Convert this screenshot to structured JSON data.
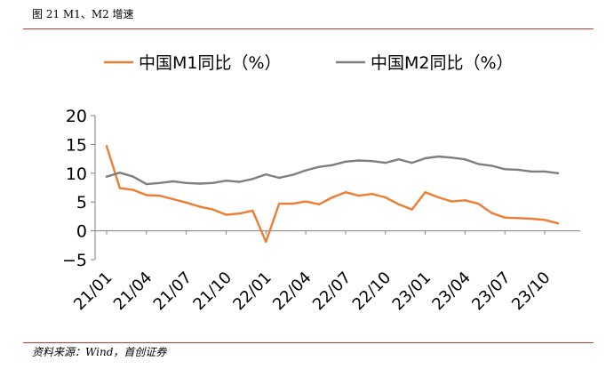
{
  "figure": {
    "title": "图 21 M1、M2 增速",
    "source": "资料来源：Wind，首创证券"
  },
  "colors": {
    "m1": "#ED7D31",
    "m2": "#7F7F7F",
    "axis": "#7F7F7F",
    "rule": "#C0392B"
  },
  "chart_data": {
    "type": "line",
    "title": "图 21 M1、M2 增速",
    "xlabel": "",
    "ylabel": "",
    "ylim": [
      -5,
      20
    ],
    "yticks": [
      "20",
      "15",
      "10",
      "5",
      "0",
      "−5"
    ],
    "ytick_values": [
      20,
      15,
      10,
      5,
      0,
      -5
    ],
    "grid": false,
    "legend": "top",
    "xtick_labels": [
      "21/01",
      "21/04",
      "21/07",
      "21/10",
      "22/01",
      "22/04",
      "22/07",
      "22/10",
      "23/01",
      "23/04",
      "23/07",
      "23/10"
    ],
    "xtick_indices": [
      0,
      3,
      6,
      9,
      12,
      15,
      18,
      21,
      24,
      27,
      30,
      33
    ],
    "x": [
      "21/01",
      "21/02",
      "21/03",
      "21/04",
      "21/05",
      "21/06",
      "21/07",
      "21/08",
      "21/09",
      "21/10",
      "21/11",
      "21/12",
      "22/01",
      "22/02",
      "22/03",
      "22/04",
      "22/05",
      "22/06",
      "22/07",
      "22/08",
      "22/09",
      "22/10",
      "22/11",
      "22/12",
      "23/01",
      "23/02",
      "23/03",
      "23/04",
      "23/05",
      "23/06",
      "23/07",
      "23/08",
      "23/09",
      "23/10",
      "23/11",
      "23/12"
    ],
    "series": [
      {
        "name": "中国M1同比（%）",
        "values": [
          14.7,
          7.4,
          7.1,
          6.2,
          6.1,
          5.5,
          4.9,
          4.2,
          3.7,
          2.8,
          3.0,
          3.5,
          -1.9,
          4.7,
          4.7,
          5.1,
          4.6,
          5.8,
          6.7,
          6.1,
          6.4,
          5.8,
          4.6,
          3.7,
          6.7,
          5.8,
          5.1,
          5.3,
          4.7,
          3.1,
          2.3,
          2.2,
          2.1,
          1.9,
          1.3,
          null
        ]
      },
      {
        "name": "中国M2同比（%）",
        "values": [
          9.4,
          10.1,
          9.4,
          8.1,
          8.3,
          8.6,
          8.3,
          8.2,
          8.3,
          8.7,
          8.5,
          9.0,
          9.8,
          9.2,
          9.7,
          10.5,
          11.1,
          11.4,
          12.0,
          12.2,
          12.1,
          11.8,
          12.4,
          11.8,
          12.6,
          12.9,
          12.7,
          12.4,
          11.6,
          11.3,
          10.7,
          10.6,
          10.3,
          10.3,
          10.0,
          null
        ]
      }
    ]
  }
}
